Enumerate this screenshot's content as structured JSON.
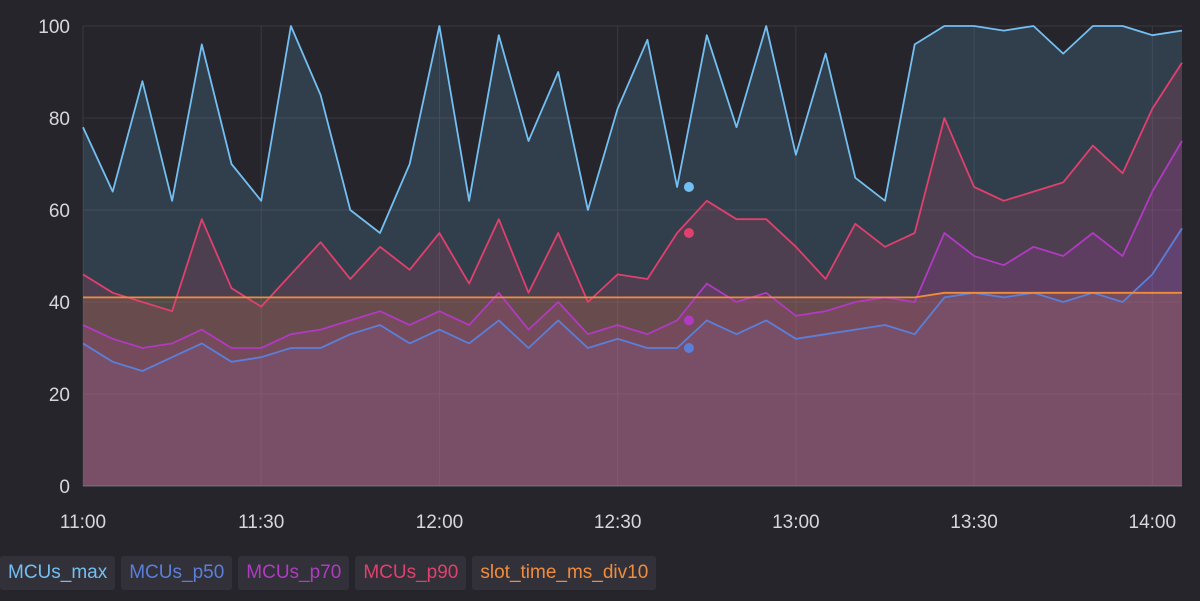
{
  "chart_data": {
    "type": "area",
    "x": [
      "11:00",
      "11:05",
      "11:10",
      "11:15",
      "11:20",
      "11:25",
      "11:30",
      "11:35",
      "11:40",
      "11:45",
      "11:50",
      "11:55",
      "12:00",
      "12:05",
      "12:10",
      "12:15",
      "12:20",
      "12:25",
      "12:30",
      "12:35",
      "12:40",
      "12:45",
      "12:50",
      "12:55",
      "13:00",
      "13:05",
      "13:10",
      "13:15",
      "13:20",
      "13:25",
      "13:30",
      "13:35",
      "13:40",
      "13:45",
      "13:50",
      "13:55",
      "14:00",
      "14:05"
    ],
    "x_ticks": [
      "11:00",
      "11:30",
      "12:00",
      "12:30",
      "13:00",
      "13:30",
      "14:00"
    ],
    "ylim": [
      0,
      100
    ],
    "y_ticks": [
      0,
      20,
      40,
      60,
      80,
      100
    ],
    "grid": true,
    "legend": "bottom-left",
    "series": [
      {
        "name": "MCUs_max",
        "color": "#73bff2",
        "values": [
          78,
          64,
          88,
          62,
          96,
          70,
          62,
          100,
          85,
          60,
          55,
          70,
          100,
          62,
          98,
          75,
          90,
          60,
          82,
          97,
          65,
          98,
          78,
          100,
          72,
          94,
          67,
          62,
          96,
          100,
          100,
          99,
          100,
          94,
          100,
          100,
          98,
          99
        ]
      },
      {
        "name": "MCUs_p50",
        "color": "#5b7fd9",
        "values": [
          31,
          27,
          25,
          28,
          31,
          27,
          28,
          30,
          30,
          33,
          35,
          31,
          34,
          31,
          36,
          30,
          36,
          30,
          32,
          30,
          30,
          36,
          33,
          36,
          32,
          33,
          34,
          35,
          33,
          41,
          42,
          41,
          42,
          40,
          42,
          40,
          46,
          56
        ]
      },
      {
        "name": "MCUs_p70",
        "color": "#b03ac2",
        "values": [
          35,
          32,
          30,
          31,
          34,
          30,
          30,
          33,
          34,
          36,
          38,
          35,
          38,
          35,
          42,
          34,
          40,
          33,
          35,
          33,
          36,
          44,
          40,
          42,
          37,
          38,
          40,
          41,
          40,
          55,
          50,
          48,
          52,
          50,
          55,
          50,
          64,
          75
        ]
      },
      {
        "name": "MCUs_p90",
        "color": "#e0406d",
        "values": [
          46,
          42,
          40,
          38,
          58,
          43,
          39,
          46,
          53,
          45,
          52,
          47,
          55,
          44,
          58,
          42,
          55,
          40,
          46,
          45,
          55,
          62,
          58,
          58,
          52,
          45,
          57,
          52,
          55,
          80,
          65,
          62,
          64,
          66,
          74,
          68,
          82,
          92
        ]
      },
      {
        "name": "slot_time_ms_div10",
        "color": "#f08c3c",
        "values": [
          41,
          41,
          41,
          41,
          41,
          41,
          41,
          41,
          41,
          41,
          41,
          41,
          41,
          41,
          41,
          41,
          41,
          41,
          41,
          41,
          41,
          41,
          41,
          41,
          41,
          41,
          41,
          41,
          41,
          42,
          42,
          42,
          42,
          42,
          42,
          42,
          42,
          42
        ]
      }
    ],
    "hover_x": "12:42"
  },
  "legend_bg": "#323139"
}
